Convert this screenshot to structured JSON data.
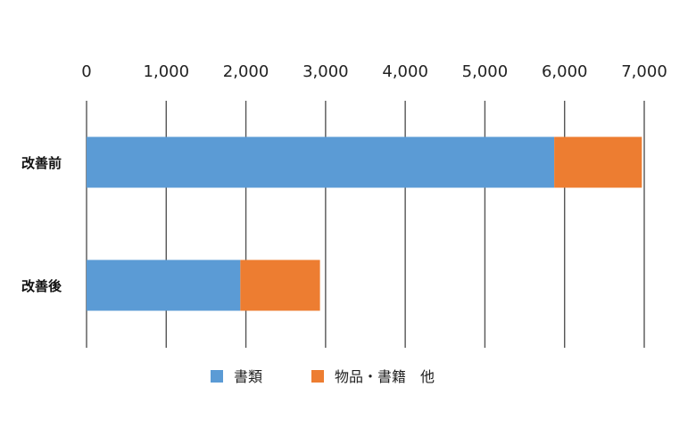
{
  "chart_data": {
    "type": "bar",
    "orientation": "horizontal",
    "stacked": true,
    "categories": [
      "改善前",
      "改善後"
    ],
    "series": [
      {
        "name": "書類",
        "values": [
          5870,
          1930
        ],
        "color": "#5b9bd5"
      },
      {
        "name": "物品・書籍　他",
        "values": [
          1100,
          1000
        ],
        "color": "#ed7d31"
      }
    ],
    "xlim": [
      0,
      7000
    ],
    "xticks": [
      "0",
      "1,000",
      "2,000",
      "3,000",
      "4,000",
      "5,000",
      "6,000",
      "7,000"
    ],
    "axis_position": "top",
    "grid": true,
    "legend": "bottom",
    "title": "",
    "xlabel": "",
    "ylabel": ""
  }
}
